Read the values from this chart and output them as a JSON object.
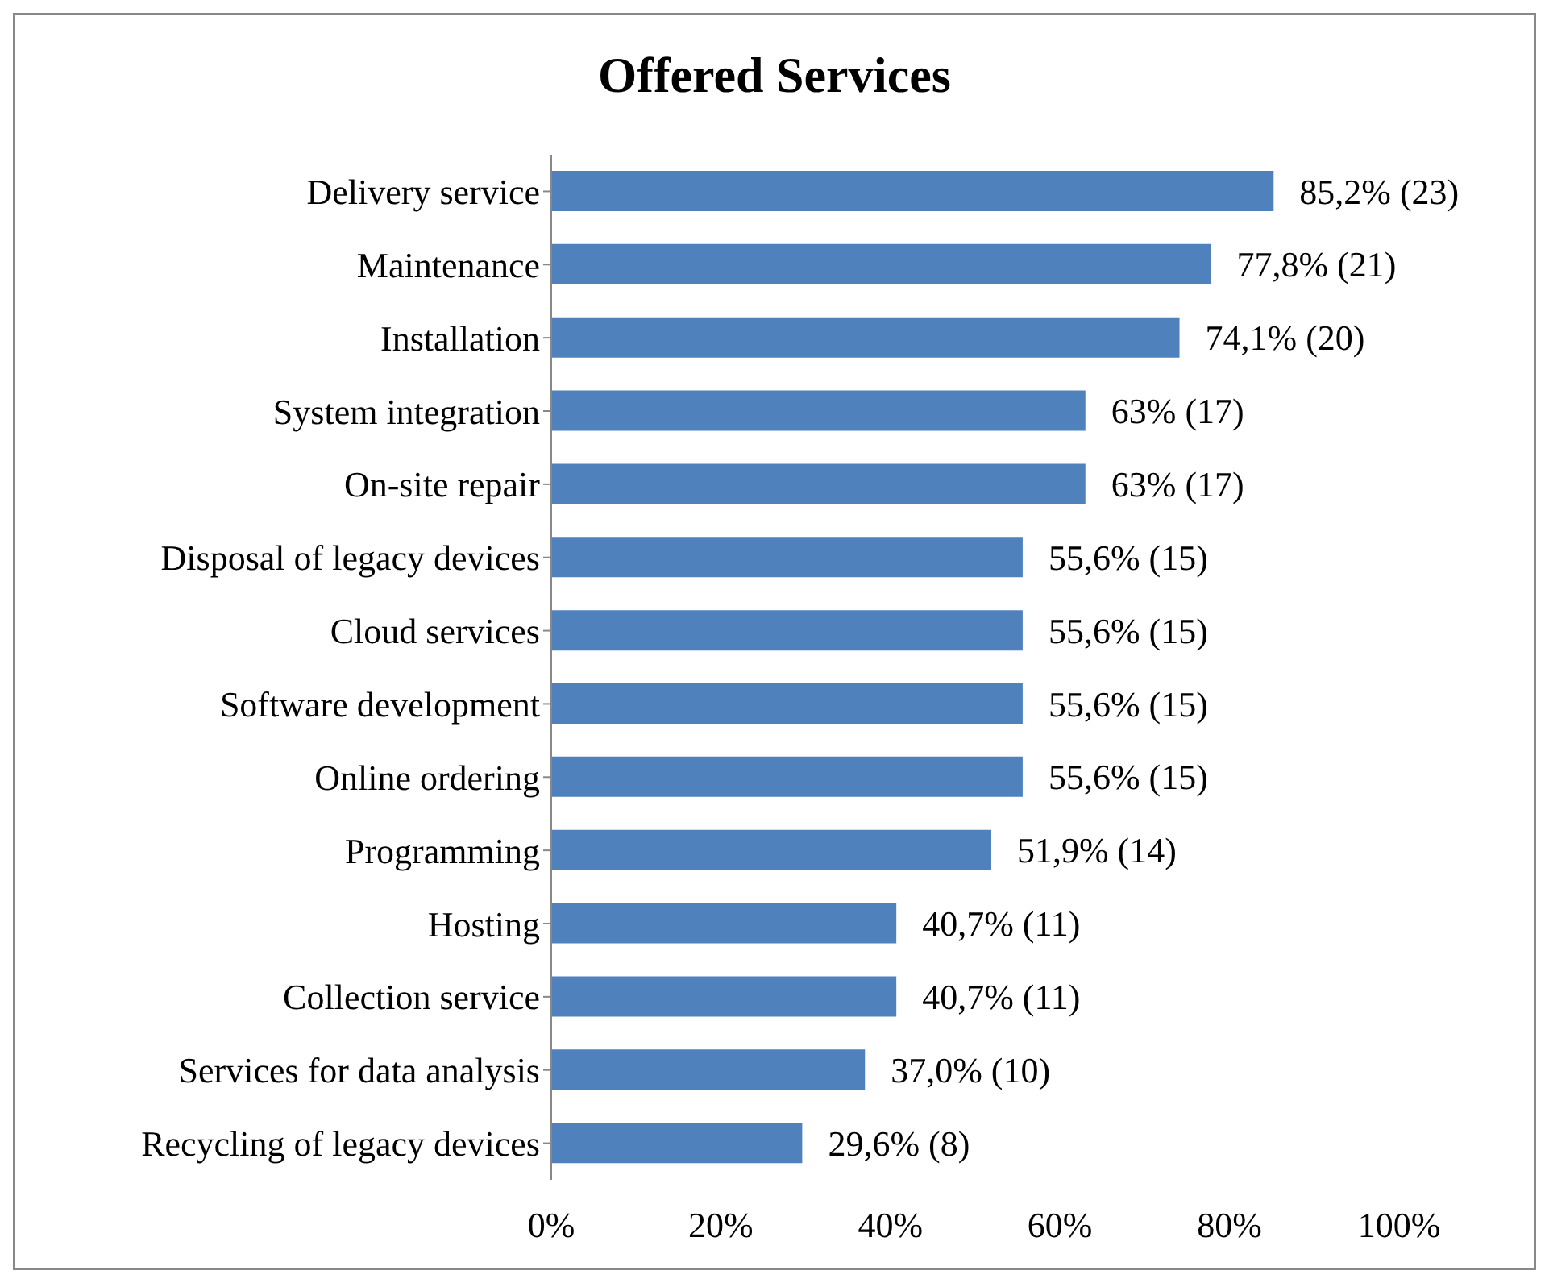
{
  "chart_data": {
    "type": "bar",
    "orientation": "horizontal",
    "title": "Offered Services",
    "categories": [
      "Delivery service",
      "Maintenance",
      "Installation",
      "System integration",
      "On-site repair",
      "Disposal of legacy devices",
      "Cloud services",
      "Software development",
      "Online ordering",
      "Programming",
      "Hosting",
      "Collection service",
      "Services for data analysis",
      "Recycling of legacy devices"
    ],
    "values": [
      85.2,
      77.8,
      74.1,
      63,
      63,
      55.6,
      55.6,
      55.6,
      55.6,
      51.9,
      40.7,
      40.7,
      37.0,
      29.6
    ],
    "value_labels": [
      "85,2% (23)",
      "77,8% (21)",
      "74,1% (20)",
      "63% (17)",
      "63% (17)",
      "55,6% (15)",
      "55,6% (15)",
      "55,6% (15)",
      "55,6% (15)",
      "51,9% (14)",
      "40,7% (11)",
      "40,7% (11)",
      "37,0% (10)",
      "29,6% (8)"
    ],
    "color": "#4f81bd",
    "xlim": [
      0,
      100
    ],
    "xticks": [
      {
        "value": 0,
        "label": "0%"
      },
      {
        "value": 20,
        "label": "20%"
      },
      {
        "value": 40,
        "label": "40%"
      },
      {
        "value": 60,
        "label": "60%"
      },
      {
        "value": 80,
        "label": "80%"
      },
      {
        "value": 100,
        "label": "100%"
      }
    ]
  }
}
